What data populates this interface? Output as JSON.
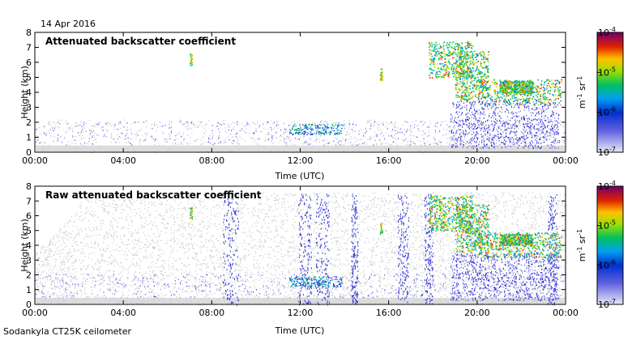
{
  "date_label": "14 Apr 2016",
  "footer": "Sodankyla CT25K ceilometer",
  "colorbar": {
    "unit_html": "m<tspan dy='-4' font-size='8'>-1</tspan><tspan dy='4'> sr</tspan><tspan dy='-4' font-size='8'>-1</tspan>",
    "unit_plain": "m-1 sr-1",
    "ticks": [
      "10-7",
      "10-6",
      "10-5",
      "10-4"
    ],
    "scale": "log",
    "colors": [
      "#d8d8f0",
      "#2020d0",
      "#00a0e0",
      "#00c060",
      "#a0e000",
      "#ffa000",
      "#e02000",
      "#800080"
    ]
  },
  "chart_data": [
    {
      "type": "heatmap",
      "title": "Attenuated backscatter coefficient",
      "xlabel": "Time (UTC)",
      "ylabel": "Height (km)",
      "xticks": [
        "00:00",
        "04:00",
        "08:00",
        "12:00",
        "16:00",
        "20:00",
        "00:00"
      ],
      "xlim_hours": [
        0,
        24
      ],
      "yticks": [
        0,
        1,
        2,
        3,
        4,
        5,
        6,
        7,
        8
      ],
      "ylim": [
        0,
        8
      ],
      "zlim": [
        1e-07,
        0.0001
      ],
      "zscale": "log"
    },
    {
      "type": "heatmap",
      "title": "Raw attenuated backscatter coefficient",
      "xlabel": "Time (UTC)",
      "ylabel": "Height (km)",
      "xticks": [
        "00:00",
        "04:00",
        "08:00",
        "12:00",
        "16:00",
        "20:00",
        "00:00"
      ],
      "xlim_hours": [
        0,
        24
      ],
      "yticks": [
        0,
        1,
        2,
        3,
        4,
        5,
        6,
        7,
        8
      ],
      "ylim": [
        0,
        8
      ],
      "zlim": [
        1e-07,
        0.0001
      ],
      "zscale": "log"
    }
  ]
}
